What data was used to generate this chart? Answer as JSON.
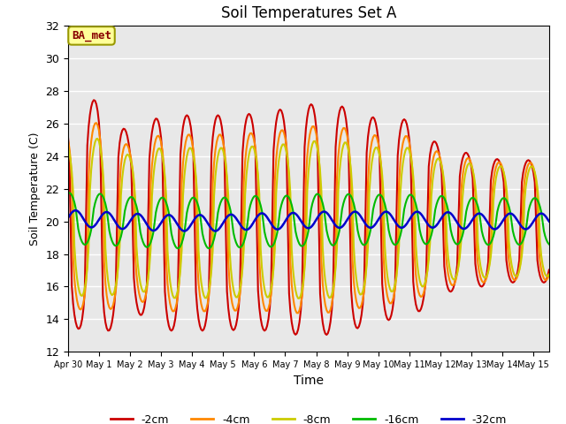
{
  "title": "Soil Temperatures Set A",
  "xlabel": "Time",
  "ylabel": "Soil Temperature (C)",
  "ylim": [
    12,
    32
  ],
  "yticks": [
    12,
    14,
    16,
    18,
    20,
    22,
    24,
    26,
    28,
    30,
    32
  ],
  "num_days": 15.5,
  "series_names": [
    "-2cm",
    "-4cm",
    "-8cm",
    "-16cm",
    "-32cm"
  ],
  "series_colors": [
    "#cc0000",
    "#ff8800",
    "#cccc00",
    "#00bb00",
    "#0000cc"
  ],
  "series_lw": [
    1.5,
    1.5,
    1.5,
    1.5,
    1.8
  ],
  "series_mean": [
    20.0,
    20.0,
    20.0,
    20.0,
    20.0
  ],
  "series_base_amp": [
    7.5,
    6.0,
    5.0,
    1.6,
    0.5
  ],
  "series_phase_hrs": [
    0.0,
    1.5,
    2.5,
    5.0,
    10.0
  ],
  "series_sharpness": [
    3.0,
    2.5,
    2.0,
    1.5,
    1.0
  ],
  "daily_amp_2cm": [
    0.85,
    1.0,
    0.7,
    0.88,
    0.88,
    0.88,
    0.88,
    0.92,
    0.95,
    0.92,
    0.82,
    0.82,
    0.6,
    0.55,
    0.5
  ],
  "daily_mean_shift": [
    0.2,
    0.1,
    0.0,
    -0.1,
    -0.1,
    -0.1,
    0.0,
    0.0,
    0.1,
    0.1,
    0.1,
    0.1,
    0.1,
    0.0,
    0.0
  ],
  "xtick_labels": [
    "Apr 30",
    "May 1",
    "May 2",
    "May 3",
    "May 4",
    "May 5",
    "May 6",
    "May 7",
    "May 8",
    "May 9",
    "May 10",
    "May 11",
    "May 12",
    "May 13",
    "May 14",
    "May 15"
  ],
  "label_box_text": "BA_met",
  "label_box_facecolor": "#ffff99",
  "label_box_edgecolor": "#999900",
  "label_box_textcolor": "#880000",
  "bg_color": "#e8e8e8",
  "grid_color": "#ffffff",
  "fig_facecolor": "#ffffff"
}
